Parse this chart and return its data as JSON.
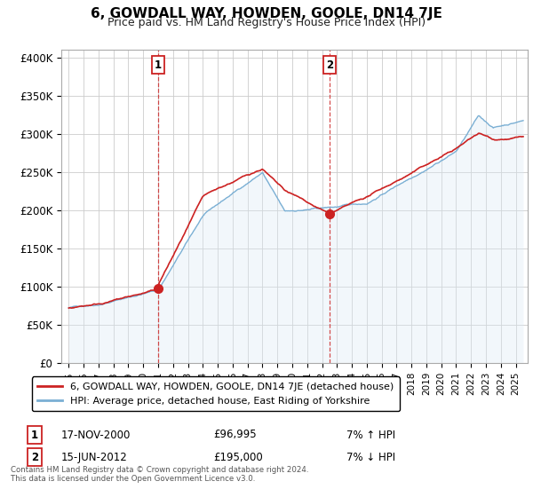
{
  "title": "6, GOWDALL WAY, HOWDEN, GOOLE, DN14 7JE",
  "subtitle": "Price paid vs. HM Land Registry's House Price Index (HPI)",
  "ylabel_ticks": [
    "£0",
    "£50K",
    "£100K",
    "£150K",
    "£200K",
    "£250K",
    "£300K",
    "£350K",
    "£400K"
  ],
  "ytick_values": [
    0,
    50000,
    100000,
    150000,
    200000,
    250000,
    300000,
    350000,
    400000
  ],
  "ylim": [
    0,
    410000
  ],
  "xlim_start": 1994.5,
  "xlim_end": 2025.8,
  "x_tick_labels": [
    "1995",
    "1996",
    "1997",
    "1998",
    "1999",
    "2000",
    "2001",
    "2002",
    "2003",
    "2004",
    "2005",
    "2006",
    "2007",
    "2008",
    "2009",
    "2010",
    "2011",
    "2012",
    "2013",
    "2014",
    "2015",
    "2016",
    "2017",
    "2018",
    "2019",
    "2020",
    "2021",
    "2022",
    "2023",
    "2024",
    "2025"
  ],
  "sale1_x": 2001.0,
  "sale1_y": 96995,
  "sale1_label": "1",
  "sale1_date": "17-NOV-2000",
  "sale1_price": "£96,995",
  "sale1_hpi": "7% ↑ HPI",
  "sale2_x": 2012.5,
  "sale2_y": 195000,
  "sale2_label": "2",
  "sale2_date": "15-JUN-2012",
  "sale2_price": "£195,000",
  "sale2_hpi": "7% ↓ HPI",
  "red_line_color": "#cc2222",
  "blue_line_color": "#7aafd4",
  "blue_fill_color": "#daeaf5",
  "background_color": "#ffffff",
  "grid_color": "#cccccc",
  "legend_label_red": "6, GOWDALL WAY, HOWDEN, GOOLE, DN14 7JE (detached house)",
  "legend_label_blue": "HPI: Average price, detached house, East Riding of Yorkshire",
  "footer": "Contains HM Land Registry data © Crown copyright and database right 2024.\nThis data is licensed under the Open Government Licence v3.0.",
  "title_fontsize": 11,
  "subtitle_fontsize": 9
}
